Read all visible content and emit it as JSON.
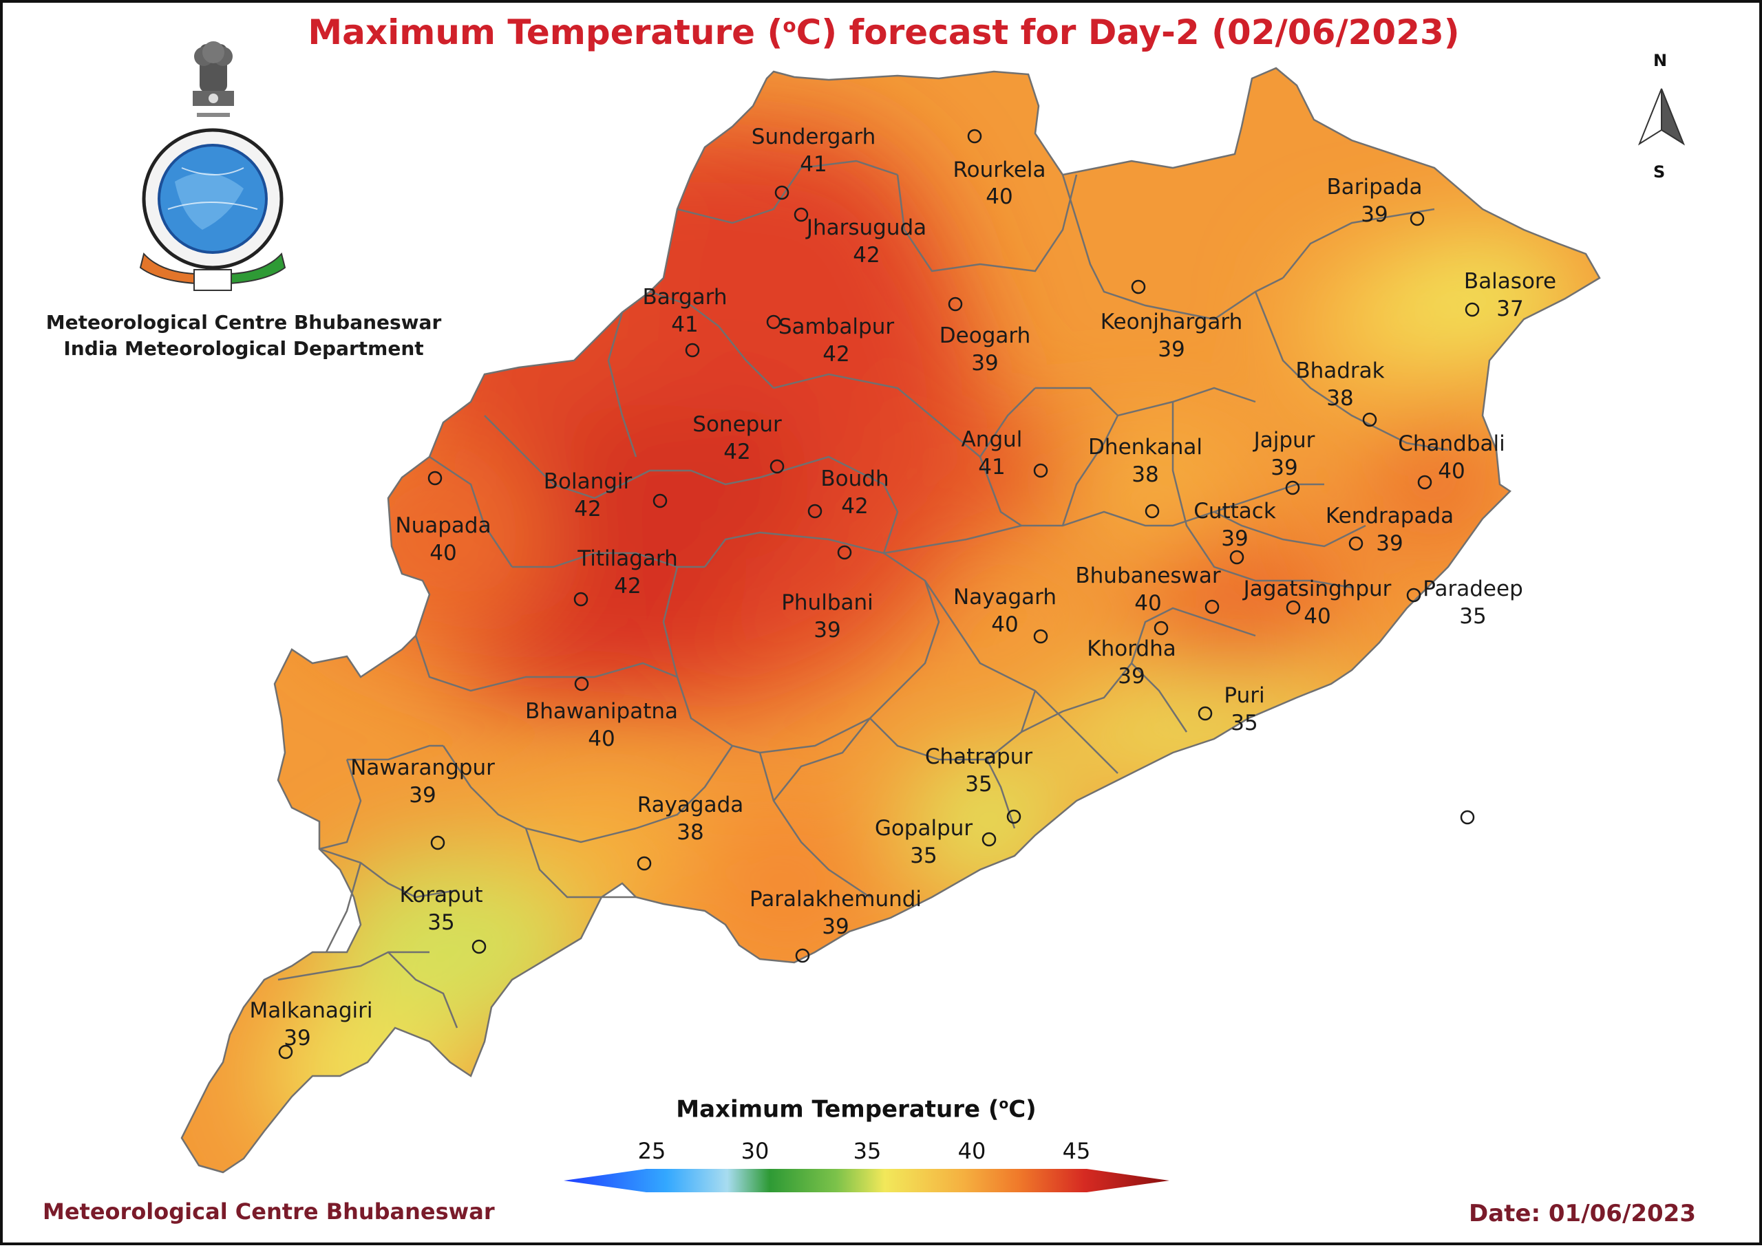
{
  "title": {
    "prefix": "Maximum Temperature (",
    "sup": "o",
    "suffix": "C) forecast for Day-2 (02/06/2023)"
  },
  "org": {
    "line1": "Meteorological Centre Bhubaneswar",
    "line2": "India Meteorological Department"
  },
  "footer": {
    "left": "Meteorological Centre Bhubaneswar",
    "right": "Date: 01/06/2023"
  },
  "north_arrow": {
    "n": "N",
    "s": "S"
  },
  "legend": {
    "title_prefix": "Maximum Temperature (",
    "title_sup": "o",
    "title_suffix": "C)",
    "ticks": [
      "25",
      "30",
      "35",
      "40",
      "45"
    ],
    "colors": [
      "#1f3fff",
      "#33a8ff",
      "#a8dcf0",
      "#2e9a35",
      "#7cc24a",
      "#f2e85a",
      "#f5b040",
      "#f07a2a",
      "#d62a22",
      "#8b1010"
    ]
  },
  "stations": [
    {
      "name": "Sundergarh",
      "value": "41"
    },
    {
      "name": "Rourkela",
      "value": "40"
    },
    {
      "name": "Jharsuguda",
      "value": "42"
    },
    {
      "name": "Baripada",
      "value": "39"
    },
    {
      "name": "Balasore",
      "value": "37"
    },
    {
      "name": "Bargarh",
      "value": "41"
    },
    {
      "name": "Sambalpur",
      "value": "42"
    },
    {
      "name": "Deogarh",
      "value": "39"
    },
    {
      "name": "Keonjhargarh",
      "value": "39"
    },
    {
      "name": "Bhadrak",
      "value": "38"
    },
    {
      "name": "Sonepur",
      "value": "42"
    },
    {
      "name": "Angul",
      "value": "41"
    },
    {
      "name": "Dhenkanal",
      "value": "38"
    },
    {
      "name": "Jajpur",
      "value": "39"
    },
    {
      "name": "Chandbali",
      "value": "40"
    },
    {
      "name": "Bolangir",
      "value": "42"
    },
    {
      "name": "Boudh",
      "value": "42"
    },
    {
      "name": "Cuttack",
      "value": "39"
    },
    {
      "name": "Kendrapada",
      "value": "39"
    },
    {
      "name": "Nuapada",
      "value": "40"
    },
    {
      "name": "Titilagarh",
      "value": "42"
    },
    {
      "name": "Phulbani",
      "value": "39"
    },
    {
      "name": "Nayagarh",
      "value": "40"
    },
    {
      "name": "Bhubaneswar",
      "value": "40"
    },
    {
      "name": "Jagatsinghpur",
      "value": "40"
    },
    {
      "name": "Paradeep",
      "value": "35"
    },
    {
      "name": "Khordha",
      "value": "39"
    },
    {
      "name": "Puri",
      "value": "35"
    },
    {
      "name": "Bhawanipatna",
      "value": "40"
    },
    {
      "name": "Nawarangpur",
      "value": "39"
    },
    {
      "name": "Chatrapur",
      "value": "35"
    },
    {
      "name": "Rayagada",
      "value": "38"
    },
    {
      "name": "Gopalpur",
      "value": "35"
    },
    {
      "name": "Koraput",
      "value": "35"
    },
    {
      "name": "Paralakhemundi",
      "value": "39"
    },
    {
      "name": "Malkanagiri",
      "value": "39"
    }
  ]
}
